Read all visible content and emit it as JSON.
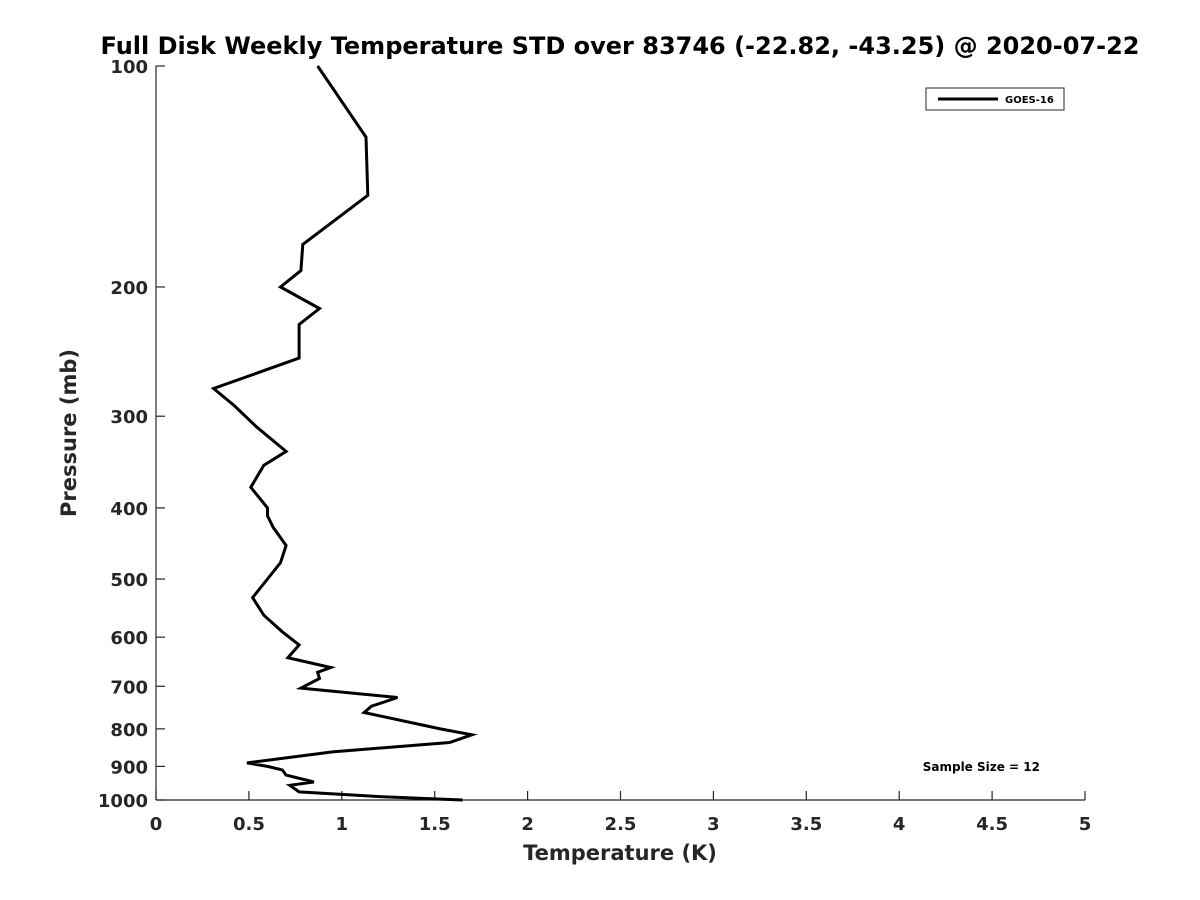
{
  "chart_data": {
    "type": "line",
    "title": "Full Disk Weekly Temperature STD over 83746 (-22.82, -43.25) @ 2020-07-22",
    "xlabel": "Temperature (K)",
    "ylabel": "Pressure (mb)",
    "xlim": [
      0,
      5
    ],
    "ylim": [
      100,
      1000
    ],
    "y_scale": "log",
    "y_reversed": true,
    "x_ticks": [
      0,
      0.5,
      1,
      1.5,
      2,
      2.5,
      3,
      3.5,
      4,
      4.5,
      5
    ],
    "x_tick_labels": [
      "0",
      "0.5",
      "1",
      "1.5",
      "2",
      "2.5",
      "3",
      "3.5",
      "4",
      "4.5",
      "5"
    ],
    "y_ticks": [
      100,
      200,
      300,
      400,
      500,
      600,
      700,
      800,
      900,
      1000
    ],
    "y_tick_labels": [
      "100",
      "200",
      "300",
      "400",
      "500",
      "600",
      "700",
      "800",
      "900",
      "1000"
    ],
    "grid": false,
    "legend_position": "top-right",
    "series": [
      {
        "name": "GOES-16",
        "color": "#000000",
        "x": [
          0.87,
          1.13,
          1.14,
          0.79,
          0.78,
          0.67,
          0.88,
          0.77,
          0.77,
          0.31,
          0.42,
          0.54,
          0.7,
          0.58,
          0.51,
          0.6,
          0.6,
          0.63,
          0.7,
          0.67,
          0.6,
          0.52,
          0.58,
          0.68,
          0.77,
          0.71,
          0.94,
          0.87,
          0.88,
          0.78,
          1.3,
          1.16,
          1.12,
          1.53,
          1.7,
          1.58,
          0.95,
          0.49,
          0.6,
          0.68,
          0.7,
          0.85,
          0.72,
          0.77,
          1.22,
          1.65
        ],
        "y": [
          100,
          125,
          150,
          175,
          190,
          200,
          214,
          225,
          250,
          275,
          290,
          310,
          335,
          350,
          375,
          400,
          410,
          425,
          450,
          475,
          500,
          530,
          560,
          590,
          615,
          640,
          660,
          670,
          683,
          704,
          725,
          745,
          760,
          800,
          815,
          835,
          860,
          890,
          900,
          910,
          925,
          945,
          955,
          975,
          990,
          1000
        ]
      }
    ],
    "annotations": [
      "Sample Size = 12"
    ]
  },
  "colors": {
    "background": "#ffffff",
    "axes": "#262626",
    "line": "#000000"
  }
}
